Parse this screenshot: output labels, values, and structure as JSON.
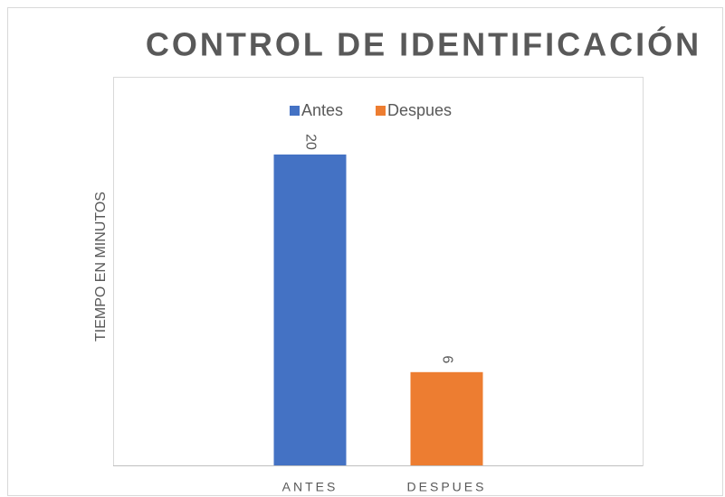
{
  "chart_data": {
    "type": "bar",
    "title": "CONTROL DE IDENTIFICACIÓN",
    "y_label": "TIEMPO EN MINUTOS",
    "categories": [
      "ANTES",
      "DESPUES"
    ],
    "series": [
      {
        "name": "Antes",
        "color": "#4472c4",
        "values": [
          20,
          null
        ]
      },
      {
        "name": "Despues",
        "color": "#ed7d31",
        "values": [
          null,
          6
        ]
      }
    ],
    "ylim": [
      0,
      25
    ]
  }
}
